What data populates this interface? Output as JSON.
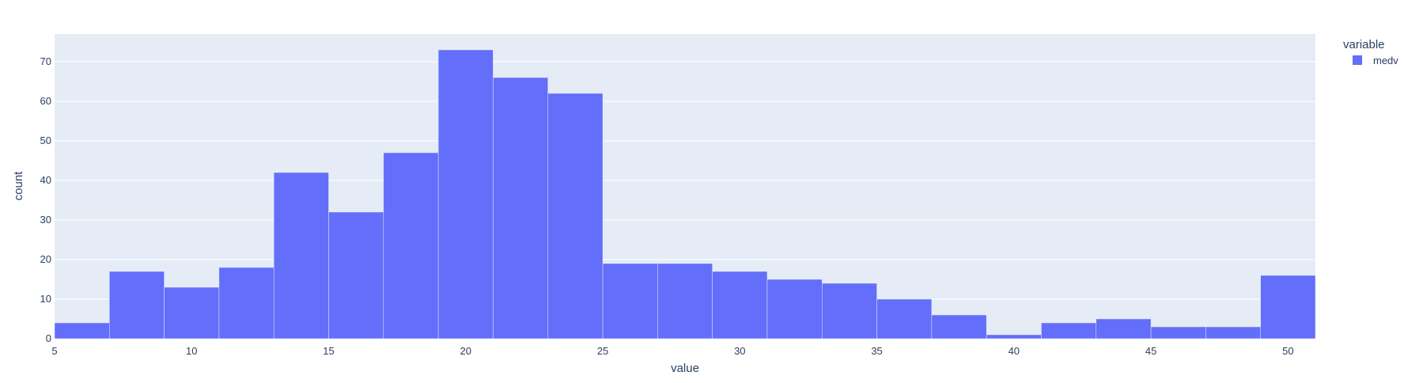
{
  "chart_data": {
    "type": "bar",
    "title": "",
    "xlabel": "value",
    "ylabel": "count",
    "x_bin_start": 5,
    "x_bin_width": 2,
    "values": [
      4,
      17,
      13,
      18,
      42,
      32,
      47,
      73,
      66,
      62,
      19,
      19,
      17,
      15,
      14,
      10,
      6,
      1,
      4,
      5,
      3,
      3,
      16
    ],
    "xlim": [
      5,
      51
    ],
    "ylim": [
      0,
      77
    ],
    "x_ticks": [
      "5",
      "10",
      "15",
      "20",
      "25",
      "30",
      "35",
      "40",
      "45",
      "50"
    ],
    "y_ticks": [
      "0",
      "10",
      "20",
      "30",
      "40",
      "50",
      "60",
      "70"
    ],
    "grid": true,
    "legend": {
      "title": "variable",
      "placement": "top-right",
      "items": [
        {
          "name": "medv",
          "color": "#636efa"
        }
      ]
    },
    "colors": {
      "bar": "#636efa",
      "plot_bg": "#e5ecf6",
      "grid": "#ffffff",
      "text": "#2a3f5f"
    }
  }
}
